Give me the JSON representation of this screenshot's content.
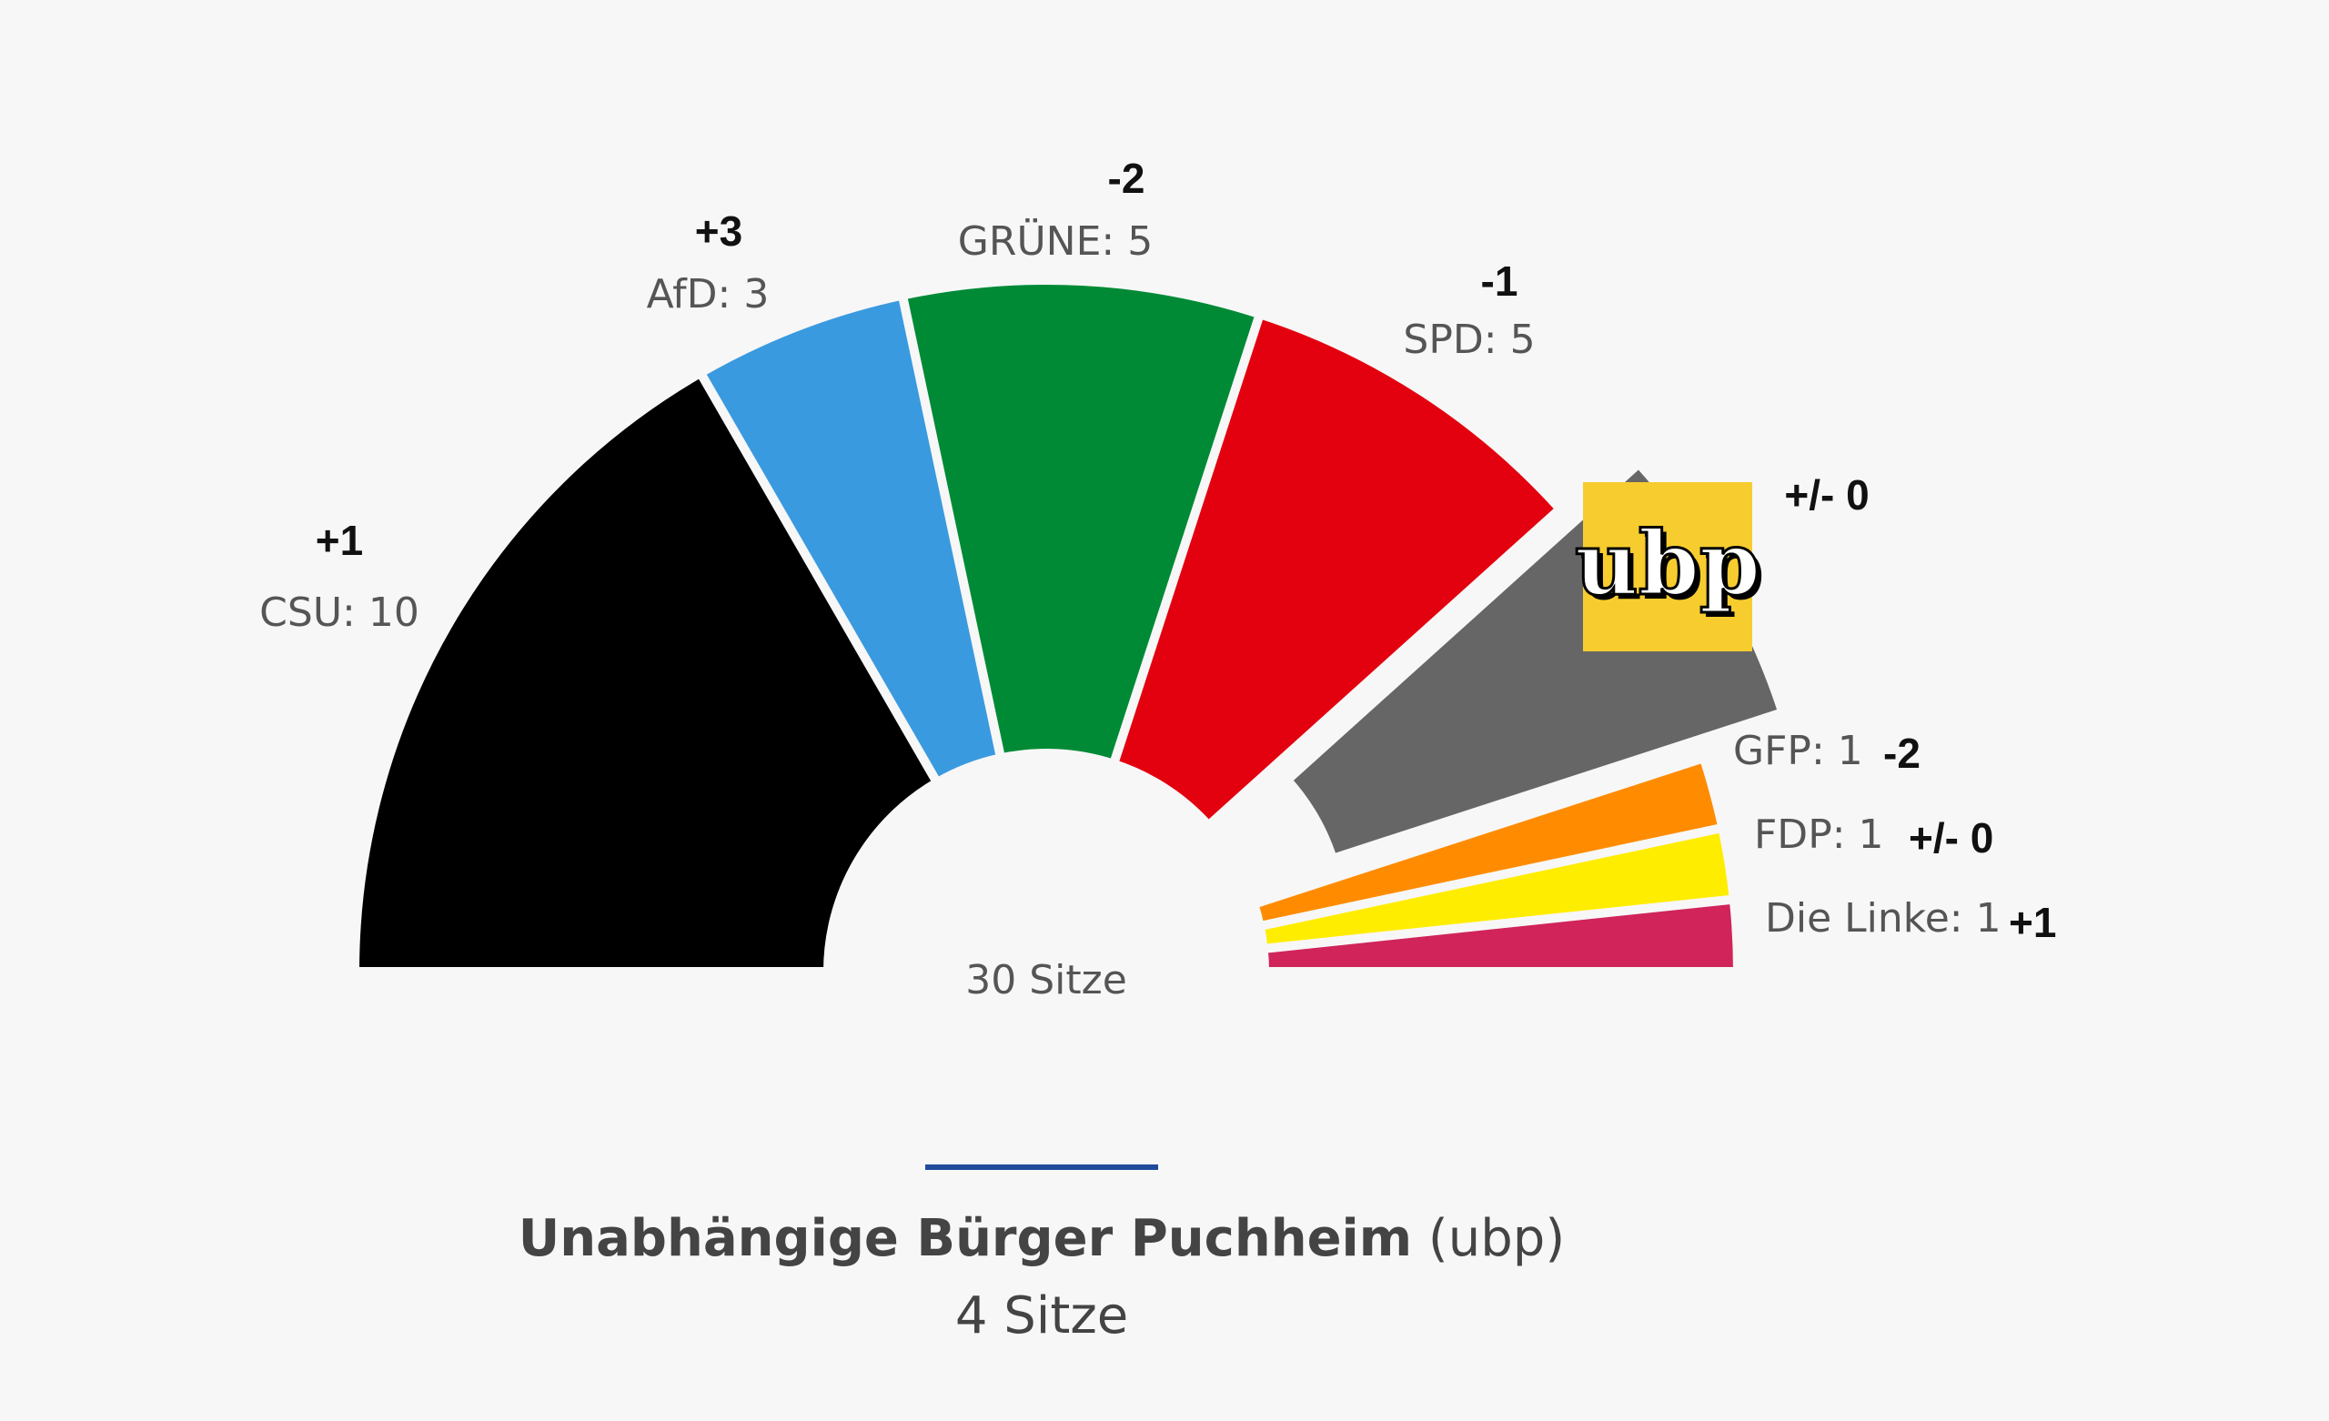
{
  "chart_data": {
    "type": "pie",
    "subtype": "semicircle-parliament",
    "total_label": "30 Sitze",
    "total_seats": 30,
    "parties": [
      {
        "name": "CSU",
        "label": "CSU: 10",
        "seats": 10,
        "change": "+1",
        "color": "#000000"
      },
      {
        "name": "AfD",
        "label": "AfD: 3",
        "seats": 3,
        "change": "+3",
        "color": "#3a9ae0"
      },
      {
        "name": "GRÜNE",
        "label": "GRÜNE: 5",
        "seats": 5,
        "change": "-2",
        "color": "#008a36"
      },
      {
        "name": "SPD",
        "label": "SPD: 5",
        "seats": 5,
        "change": "-1",
        "color": "#e3000f"
      },
      {
        "name": "ubp",
        "label": "",
        "seats": 4,
        "change": "+/- 0",
        "color": "#666666",
        "highlighted": true,
        "logo_text": "ubp",
        "logo_bg": "#f7cc2e"
      },
      {
        "name": "GFP",
        "label": "GFP: 1",
        "seats": 1,
        "change": "-2",
        "color": "#ff8c00"
      },
      {
        "name": "FDP",
        "label": "FDP: 1",
        "seats": 1,
        "change": "+/- 0",
        "color": "#ffed00"
      },
      {
        "name": "Die Linke",
        "label": "Die Linke: 1",
        "seats": 1,
        "change": "+1",
        "color": "#d0245a"
      }
    ]
  },
  "detail": {
    "party_name": "Unabhängige Bürger Puchheim",
    "party_abbr": "(ubp)",
    "seats": "4 Sitze"
  },
  "colors": {
    "background": "#f7f7f7",
    "accent_rule": "#1f4b9a"
  }
}
